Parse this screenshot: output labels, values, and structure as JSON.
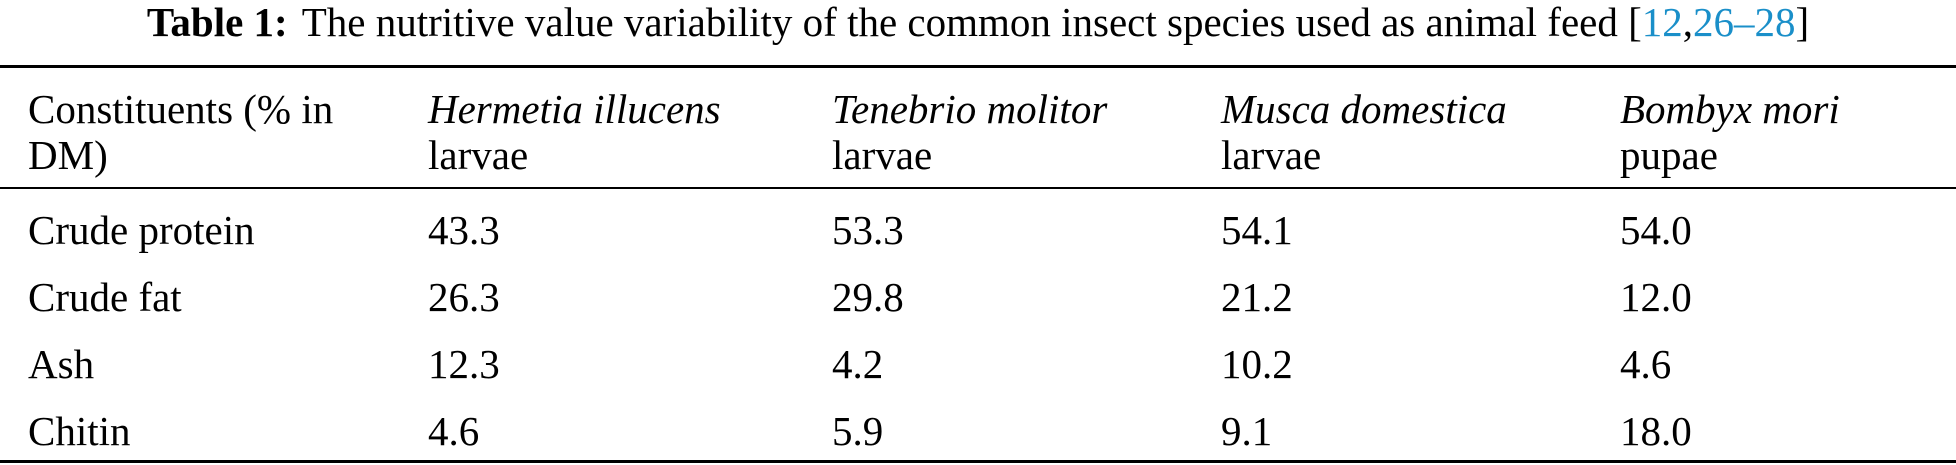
{
  "caption": {
    "label": "Table 1:",
    "text": "The nutritive value variability of the common insect species used as animal feed",
    "ref_open": "[",
    "ref1": "12",
    "ref_sep": ",",
    "ref2": "26–28",
    "ref_close": "]",
    "ref_color": "#1a8fc9"
  },
  "table": {
    "header": {
      "first_line1": "Constituents (% in",
      "first_line2": "DM)",
      "species": [
        {
          "name": "Hermetia illucens",
          "stage": "larvae"
        },
        {
          "name": "Tenebrio molitor",
          "stage": "larvae"
        },
        {
          "name": "Musca domestica",
          "stage": "larvae"
        },
        {
          "name": "Bombyx mori",
          "stage": "pupae"
        }
      ]
    },
    "rows": [
      {
        "constituent": "Crude protein",
        "values": [
          "43.3",
          "53.3",
          "54.1",
          "54.0"
        ]
      },
      {
        "constituent": "Crude fat",
        "values": [
          "26.3",
          "29.8",
          "21.2",
          "12.0"
        ]
      },
      {
        "constituent": "Ash",
        "values": [
          "12.3",
          "4.2",
          "10.2",
          "4.6"
        ]
      },
      {
        "constituent": "Chitin",
        "values": [
          "4.6",
          "5.9",
          "9.1",
          "18.0"
        ]
      }
    ]
  }
}
